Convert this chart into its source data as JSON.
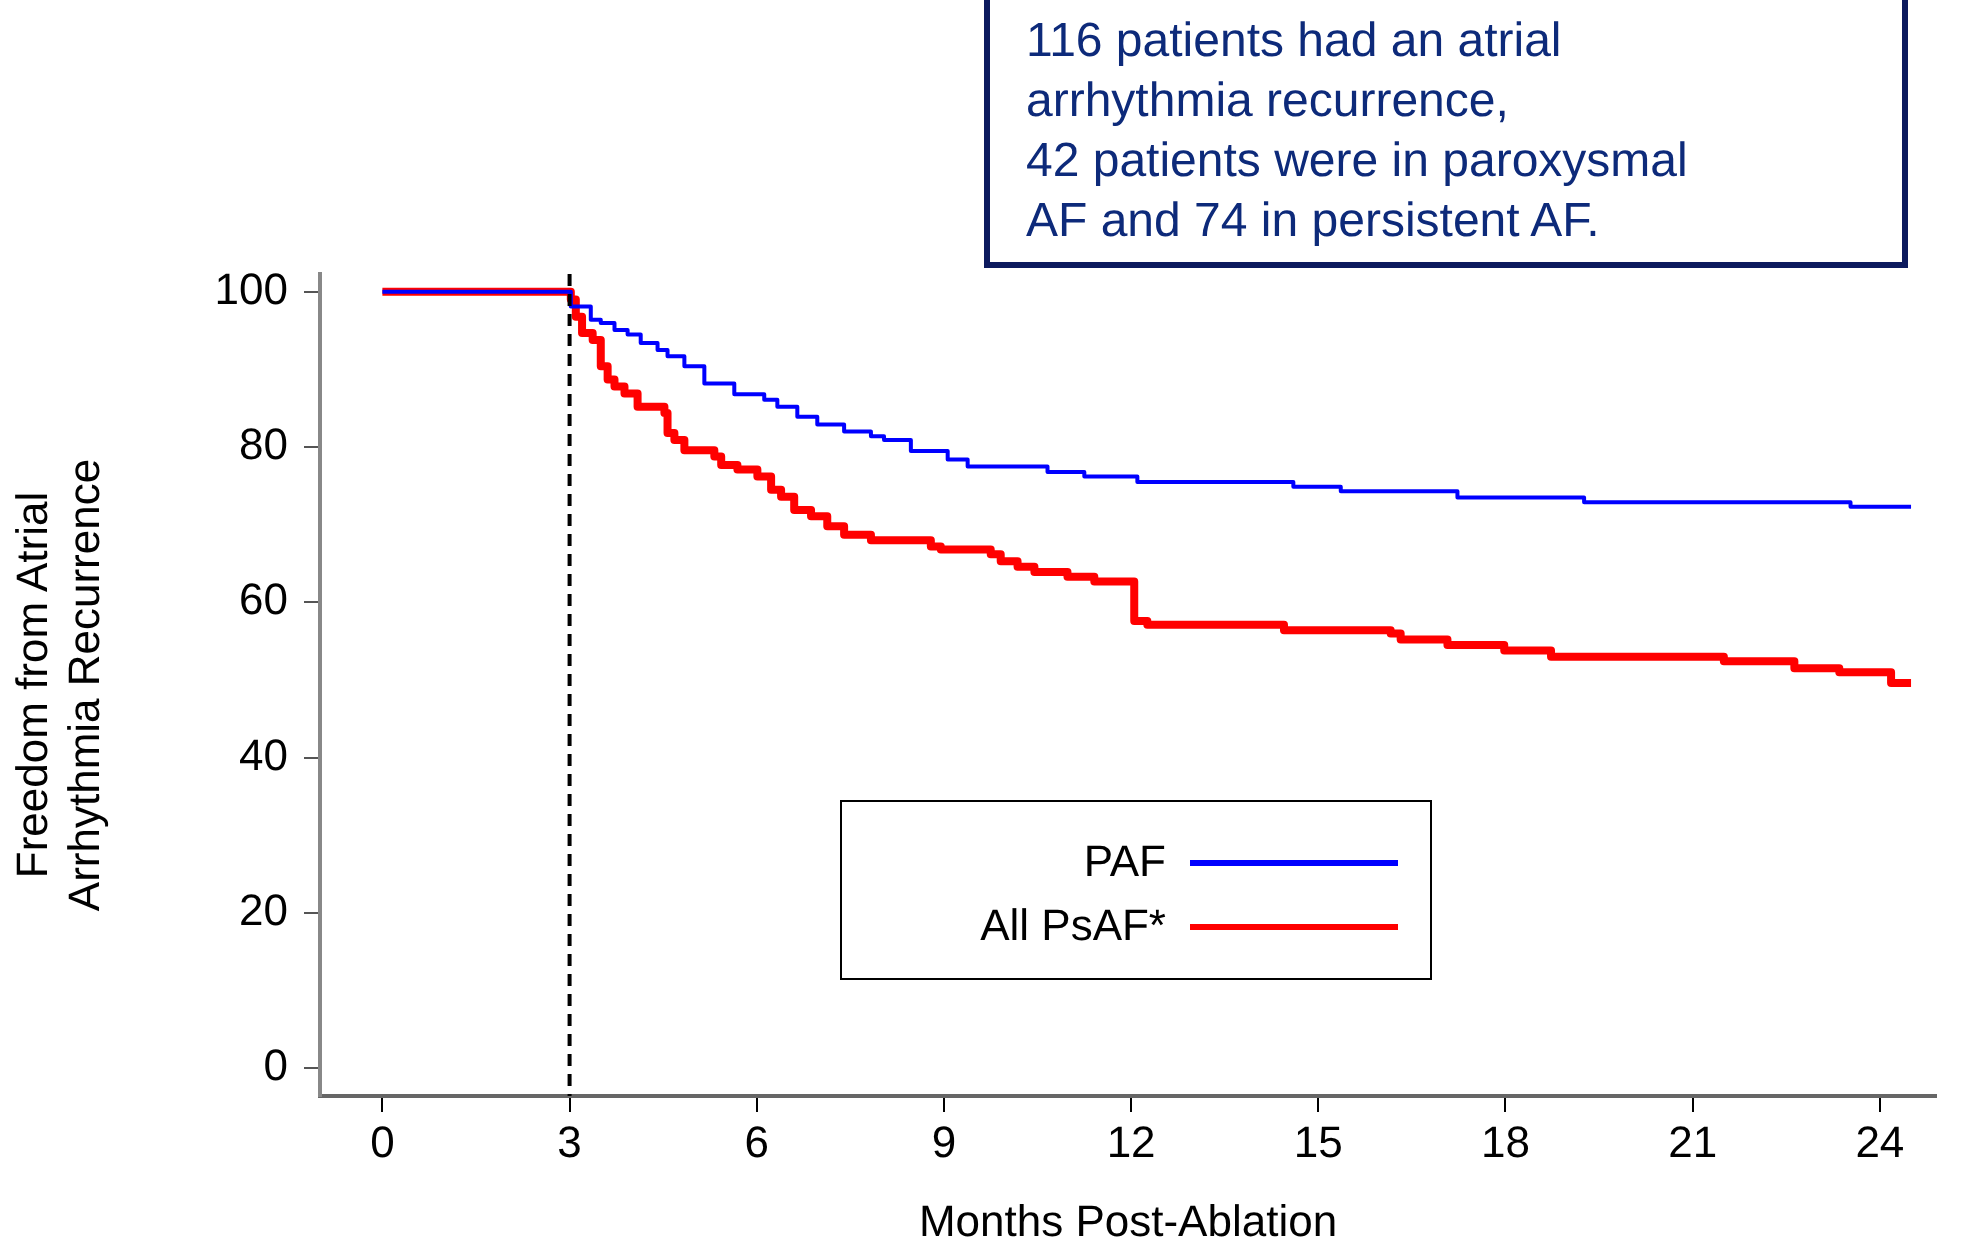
{
  "chart_data": {
    "type": "step",
    "xlabel": "Months Post-Ablation",
    "ylabel": "Freedom from Atrial\nArrhythmia Recurrence",
    "xlim": [
      -1,
      24.9
    ],
    "xticks": [
      0,
      3,
      6,
      9,
      12,
      15,
      18,
      21,
      24
    ],
    "ylim": [
      -3.6,
      102.3
    ],
    "yticks": [
      0,
      20,
      40,
      60,
      80,
      100
    ],
    "grid": false,
    "legend": "bottom",
    "line_style": "solid",
    "marker": "none",
    "ref_lines": [
      {
        "axis": "x",
        "value": 3,
        "color": "#000000",
        "line_style": "dashed"
      }
    ],
    "annotations": [
      "116 patients had an atrial\narrhythmia recurrence,\n42 patients were in paroxysmal\nAF and 74 in persistent AF."
    ],
    "series": [
      {
        "name": "PAF",
        "color": "#0000ff",
        "x": [
          0,
          3.02,
          3.34,
          3.5,
          3.72,
          3.93,
          4.14,
          4.41,
          4.57,
          4.84,
          5.16,
          5.64,
          6.12,
          6.33,
          6.65,
          6.97,
          7.4,
          7.83,
          8.04,
          8.47,
          9.06,
          9.38,
          10.66,
          11.25,
          12.1,
          14.6,
          15.36,
          17.23,
          19.26,
          23.53,
          24.5
        ],
        "values": [
          100,
          98.1,
          96.4,
          96,
          95.1,
          94.5,
          93.4,
          92.5,
          91.7,
          90.4,
          88.2,
          86.8,
          86.1,
          85.2,
          83.9,
          82.9,
          82,
          81.4,
          80.9,
          79.5,
          78.4,
          77.5,
          76.8,
          76.2,
          75.5,
          74.9,
          74.3,
          73.5,
          72.9,
          72.3,
          72.3
        ]
      },
      {
        "name": "All PsAF*",
        "color": "#ff0000",
        "x": [
          0,
          3.02,
          3.1,
          3.2,
          3.37,
          3.5,
          3.61,
          3.72,
          3.88,
          4.09,
          4.52,
          4.57,
          4.68,
          4.84,
          5.32,
          5.43,
          5.69,
          6.01,
          6.23,
          6.39,
          6.6,
          6.87,
          7.13,
          7.4,
          7.83,
          8.79,
          8.95,
          9.75,
          9.91,
          10.18,
          10.45,
          10.98,
          11.41,
          12.05,
          12.26,
          14.45,
          16.16,
          16.32,
          17.07,
          17.98,
          18.73,
          21.5,
          22.63,
          23.35,
          24.18,
          24.5
        ],
        "values": [
          100,
          99,
          96.8,
          94.7,
          93.8,
          90.4,
          88.7,
          87.8,
          86.9,
          85.2,
          84.4,
          81.8,
          80.9,
          79.6,
          78.8,
          77.7,
          77.1,
          76.2,
          74.5,
          73.6,
          71.9,
          71.1,
          69.8,
          68.7,
          68,
          67.2,
          66.8,
          66.2,
          65.3,
          64.6,
          63.9,
          63.3,
          62.7,
          57.6,
          57.1,
          56.4,
          56,
          55.2,
          54.5,
          53.8,
          53,
          52.4,
          51.5,
          51,
          49.6,
          49.6
        ]
      }
    ]
  }
}
